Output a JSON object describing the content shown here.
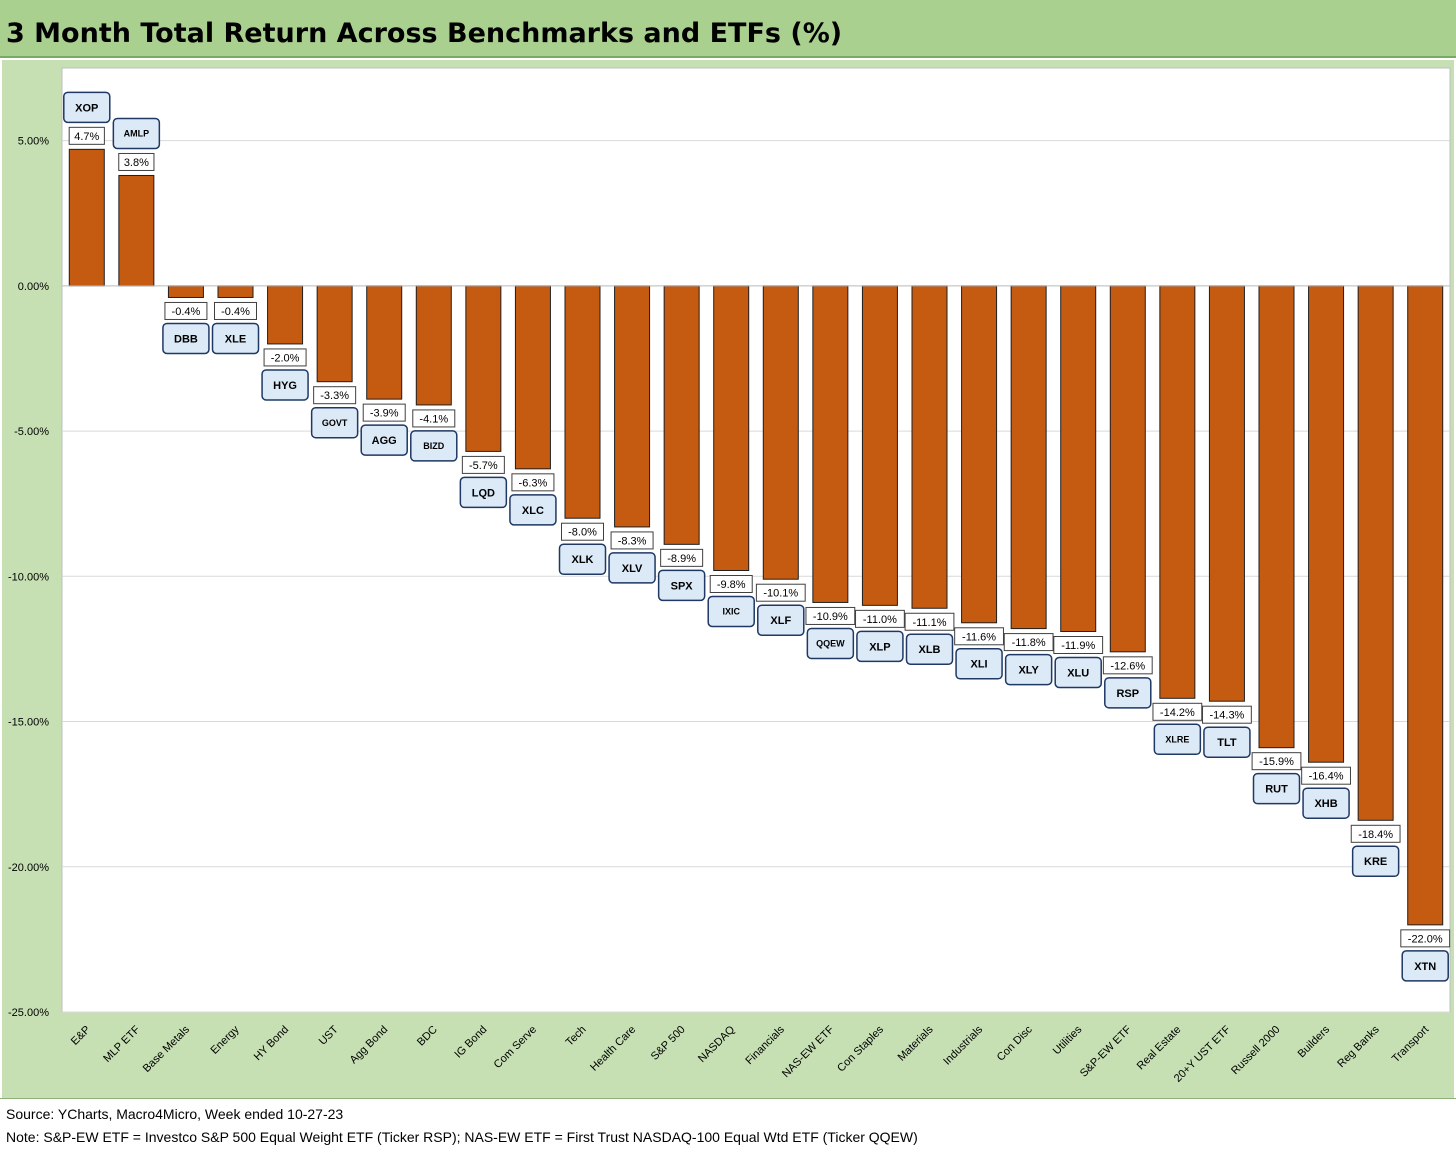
{
  "title": "3 Month Total Return Across Benchmarks and ETFs (%)",
  "source_text": "Source: YCharts, Macro4Micro, Week ended 10-27-23",
  "note_text": "Note: S&P-EW ETF = Investco S&P 500 Equal Weight ETF (Ticker RSP); NAS-EW ETF = First Trust NASDAQ-100 Equal Wtd ETF (Ticker QQEW)",
  "colors": {
    "bar": "#c55a11",
    "background": "#c6e0b4",
    "plot_area": "#ffffff",
    "title_bar": "#a9d08e",
    "ticker_box": "#dce9f7",
    "ticker_border": "#1f3864"
  },
  "chart_data": {
    "type": "bar",
    "title": "3 Month Total Return Across Benchmarks and ETFs (%)",
    "xlabel": "",
    "ylabel": "",
    "ylim": [
      -25,
      7.5
    ],
    "yticks": [
      5,
      0,
      -5,
      -10,
      -15,
      -20,
      -25
    ],
    "ytick_labels": [
      "5.00%",
      "0.00%",
      "-5.00%",
      "-10.00%",
      "-15.00%",
      "-20.00%",
      "-25.00%"
    ],
    "grid": true,
    "categories": [
      "E&P",
      "MLP ETF",
      "Base Metals",
      "Energy",
      "HY Bond",
      "UST",
      "Agg Bond",
      "BDC",
      "IG Bond",
      "Com Serve",
      "Tech",
      "Health Care",
      "S&P 500",
      "NASDAQ",
      "Financials",
      "NAS-EW ETF",
      "Con Staples",
      "Materials",
      "Industrials",
      "Con Disc",
      "Utilities",
      "S&P-EW ETF",
      "Real Estate",
      "20+Y UST ETF",
      "Russell 2000",
      "Builders",
      "Reg Banks",
      "Transport"
    ],
    "values": [
      4.7,
      3.8,
      -0.4,
      -0.4,
      -2.0,
      -3.3,
      -3.9,
      -4.1,
      -5.7,
      -6.3,
      -8.0,
      -8.3,
      -8.9,
      -9.8,
      -10.1,
      -10.9,
      -11.0,
      -11.1,
      -11.6,
      -11.8,
      -11.9,
      -12.6,
      -14.2,
      -14.3,
      -15.9,
      -16.4,
      -18.4,
      -22.0
    ],
    "value_labels": [
      "4.7%",
      "3.8%",
      "-0.4%",
      "-0.4%",
      "-2.0%",
      "-3.3%",
      "-3.9%",
      "-4.1%",
      "-5.7%",
      "-6.3%",
      "-8.0%",
      "-8.3%",
      "-8.9%",
      "-9.8%",
      "-10.1%",
      "-10.9%",
      "-11.0%",
      "-11.1%",
      "-11.6%",
      "-11.8%",
      "-11.9%",
      "-12.6%",
      "-14.2%",
      "-14.3%",
      "-15.9%",
      "-16.4%",
      "-18.4%",
      "-22.0%"
    ],
    "tickers": [
      "XOP",
      "AMLP",
      "DBB",
      "XLE",
      "HYG",
      "GOVT",
      "AGG",
      "BIZD",
      "LQD",
      "XLC",
      "XLK",
      "XLV",
      "SPX",
      "IXIC",
      "XLF",
      "QQEW",
      "XLP",
      "XLB",
      "XLI",
      "XLY",
      "XLU",
      "RSP",
      "XLRE",
      "TLT",
      "RUT",
      "XHB",
      "KRE",
      "XTN"
    ]
  }
}
